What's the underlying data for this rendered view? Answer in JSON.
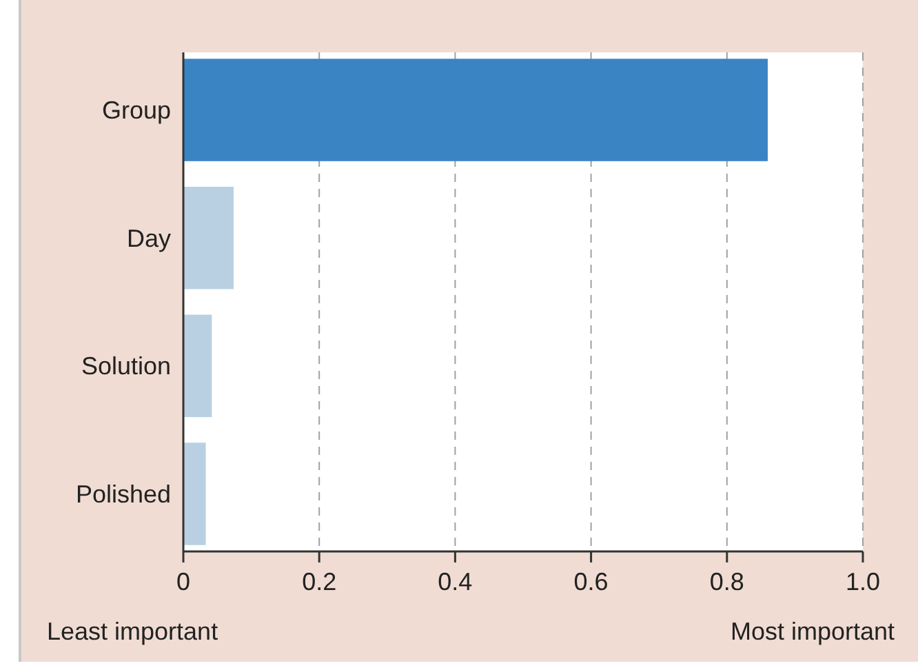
{
  "chart_data": {
    "type": "bar",
    "orientation": "horizontal",
    "categories": [
      "Group",
      "Day",
      "Solution",
      "Polished"
    ],
    "values": [
      0.86,
      0.074,
      0.042,
      0.033
    ],
    "colors": [
      "#3b84c4",
      "#b8d0e2",
      "#b8d0e2",
      "#b8d0e2"
    ],
    "xlim": [
      0,
      1.0
    ],
    "xticks": [
      0,
      0.2,
      0.4,
      0.6,
      0.8,
      {
        "value": 1.0,
        "label": "1.0"
      }
    ],
    "grid": "x",
    "annotations": [
      "Least important",
      "Most important"
    ]
  }
}
